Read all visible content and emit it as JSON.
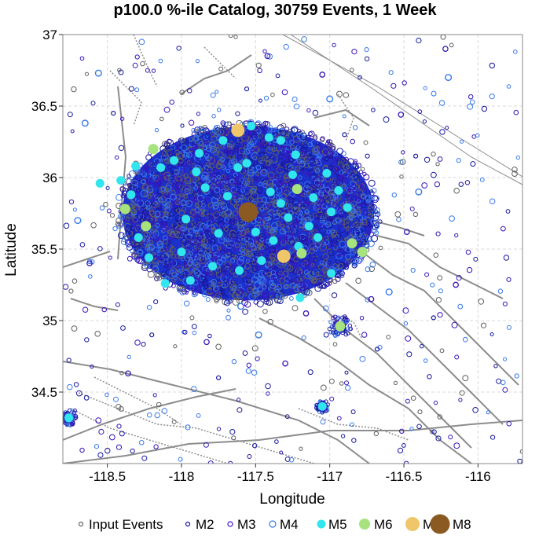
{
  "chart_data": {
    "type": "scatter",
    "title": "p100.0 %-ile Catalog, 30759 Events, 1 Week",
    "xlabel": "Longitude",
    "ylabel": "Latitude",
    "xlim": [
      -118.8,
      -115.7
    ],
    "ylim": [
      34.0,
      37.0
    ],
    "xticks": [
      -118.5,
      -118,
      -117.5,
      -117,
      -116.5,
      -116
    ],
    "xtick_labels": [
      "-118.5",
      "-118",
      "-117.5",
      "-117",
      "-116.5",
      "-116"
    ],
    "yticks": [
      34.5,
      35,
      35.5,
      36,
      36.5,
      37
    ],
    "ytick_labels": [
      "34.5",
      "35",
      "35.5",
      "36",
      "36.5",
      "37"
    ],
    "grid": true,
    "legend_placement": "bottom",
    "cluster": {
      "center_lon": -117.55,
      "center_lat": 35.75,
      "radius_lon": 0.86,
      "radius_lat": 0.62
    },
    "colors": {
      "input": "#606060",
      "m2": "#17189e",
      "m3": "#3a14b8",
      "m4": "#3a7ae8",
      "m5": "#32e6ee",
      "m6": "#a6e37e",
      "m7": "#f0c66a",
      "m8": "#8b5a22",
      "faults": "#8c8c8c",
      "cluster_fill": "#1c30cc"
    },
    "legend": [
      {
        "key": "input",
        "label": "Input Events"
      },
      {
        "key": "m2",
        "label": "M2"
      },
      {
        "key": "m3",
        "label": "M3"
      },
      {
        "key": "m4",
        "label": "M4"
      },
      {
        "key": "m5",
        "label": "M5"
      },
      {
        "key": "m6",
        "label": "M6"
      },
      {
        "key": "m7",
        "label": "M7"
      },
      {
        "key": "m8",
        "label": "M8"
      }
    ],
    "series": [
      {
        "key": "m8",
        "points": [
          [
            -117.55,
            35.76
          ]
        ]
      },
      {
        "key": "m7",
        "points": [
          [
            -117.31,
            35.45
          ],
          [
            -117.62,
            36.33
          ]
        ]
      },
      {
        "key": "m6",
        "points": [
          [
            -118.19,
            36.2
          ],
          [
            -117.22,
            35.92
          ],
          [
            -118.24,
            35.66
          ],
          [
            -117.19,
            35.47
          ],
          [
            -116.85,
            35.54
          ],
          [
            -116.78,
            35.48
          ],
          [
            -118.38,
            35.78
          ],
          [
            -116.93,
            34.96
          ]
        ]
      },
      {
        "key": "m5",
        "points": [
          [
            -118.14,
            36.07
          ],
          [
            -118.05,
            36.12
          ],
          [
            -117.88,
            36.17
          ],
          [
            -117.72,
            36.26
          ],
          [
            -117.53,
            36.36
          ],
          [
            -117.41,
            36.28
          ],
          [
            -117.33,
            36.26
          ],
          [
            -117.23,
            36.16
          ],
          [
            -117.02,
            36.03
          ],
          [
            -116.94,
            35.91
          ],
          [
            -116.88,
            35.79
          ],
          [
            -116.99,
            35.76
          ],
          [
            -117.08,
            35.58
          ],
          [
            -117.21,
            35.52
          ],
          [
            -117.38,
            35.56
          ],
          [
            -117.46,
            35.42
          ],
          [
            -117.61,
            35.35
          ],
          [
            -117.79,
            35.38
          ],
          [
            -117.94,
            35.28
          ],
          [
            -118.11,
            35.26
          ],
          [
            -118.22,
            35.44
          ],
          [
            -118.29,
            35.58
          ],
          [
            -118.34,
            35.88
          ],
          [
            -118.31,
            36.08
          ],
          [
            -118.41,
            35.98
          ],
          [
            -117.69,
            35.87
          ],
          [
            -117.84,
            35.93
          ],
          [
            -117.97,
            35.71
          ],
          [
            -117.75,
            35.61
          ],
          [
            -117.28,
            35.72
          ],
          [
            -117.11,
            35.86
          ],
          [
            -117.25,
            36.02
          ],
          [
            -117.56,
            36.1
          ],
          [
            -117.4,
            35.9
          ],
          [
            -117.62,
            36.07
          ],
          [
            -117.5,
            35.62
          ],
          [
            -116.99,
            35.33
          ],
          [
            -117.2,
            35.16
          ],
          [
            -118.55,
            35.96
          ],
          [
            -118.76,
            34.32
          ],
          [
            -117.05,
            34.4
          ],
          [
            -118.0,
            35.48
          ],
          [
            -117.9,
            36.04
          ],
          [
            -117.33,
            35.82
          ],
          [
            -117.14,
            35.66
          ]
        ]
      },
      {
        "key": "m4",
        "points": [
          [
            -118.65,
            36.38
          ],
          [
            -116.4,
            35.9
          ],
          [
            -117.9,
            36.05
          ],
          [
            -117.6,
            35.1
          ],
          [
            -116.2,
            36.7
          ],
          [
            -118.56,
            36.73
          ],
          [
            -117.48,
            34.9
          ],
          [
            -116.6,
            35.2
          ],
          [
            -118.7,
            35.7
          ],
          [
            -117.0,
            36.55
          ]
        ]
      },
      {
        "key": "m3",
        "points": [
          [
            -117.05,
            36.72
          ],
          [
            -116.22,
            36.9
          ],
          [
            -117.16,
            35.05
          ],
          [
            -118.36,
            34.63
          ],
          [
            -116.48,
            35.62
          ],
          [
            -116.15,
            35.25
          ],
          [
            -117.83,
            34.85
          ],
          [
            -118.62,
            35.4
          ],
          [
            -117.3,
            34.7
          ],
          [
            -116.72,
            35.15
          ],
          [
            -117.42,
            36.85
          ],
          [
            -116.52,
            36.44
          ]
        ]
      },
      {
        "key": "m2",
        "points": [
          [
            -116.9,
            36.3
          ],
          [
            -118.46,
            36.45
          ],
          [
            -117.75,
            34.6
          ],
          [
            -116.3,
            35.02
          ],
          [
            -118.2,
            34.9
          ],
          [
            -116.68,
            34.8
          ],
          [
            -117.56,
            36.62
          ],
          [
            -116.42,
            36.15
          ]
        ]
      }
    ]
  }
}
